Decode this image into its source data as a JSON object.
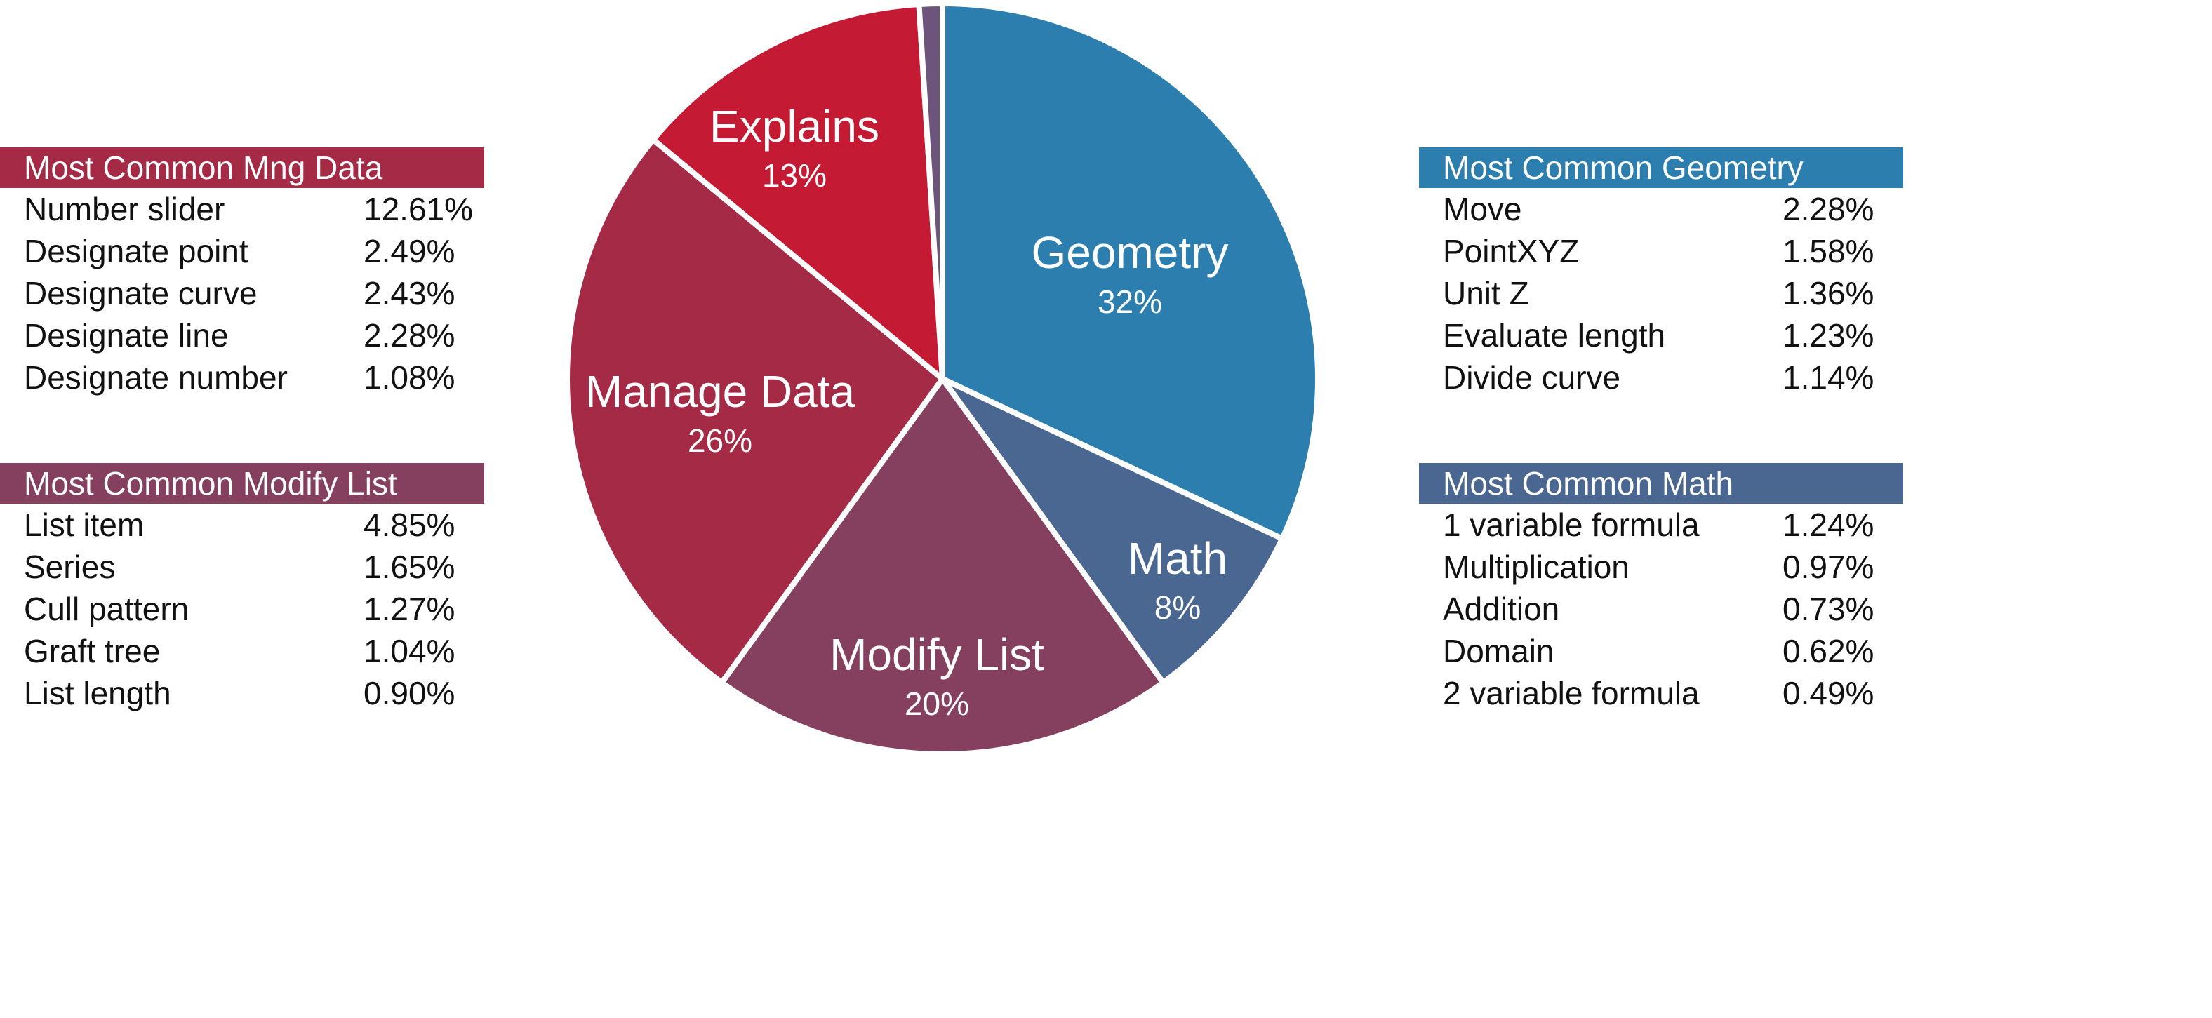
{
  "chart_data": {
    "type": "pie",
    "slices": [
      {
        "name": "Geometry",
        "percent_label": "32%",
        "value": 32,
        "color": "#2b7ead"
      },
      {
        "name": "Math",
        "percent_label": "8%",
        "value": 8,
        "color": "#4a6791"
      },
      {
        "name": "Modify List",
        "percent_label": "20%",
        "value": 20,
        "color": "#86405f"
      },
      {
        "name": "Manage Data",
        "percent_label": "26%",
        "value": 26,
        "color": "#a52a45"
      },
      {
        "name": "Explains",
        "percent_label": "13%",
        "value": 13,
        "color": "#c41a33"
      },
      {
        "name": "",
        "percent_label": "",
        "value": 1,
        "color": "#6d547a"
      }
    ]
  },
  "tables": {
    "mng_data": {
      "title": "Most Common Mng Data",
      "color": "#a52a45",
      "rows": [
        {
          "label": "Number slider",
          "value": "12.61%"
        },
        {
          "label": "Designate point",
          "value": "2.49%"
        },
        {
          "label": "Designate curve",
          "value": "2.43%"
        },
        {
          "label": "Designate line",
          "value": "2.28%"
        },
        {
          "label": "Designate number",
          "value": "1.08%"
        }
      ]
    },
    "modify_list": {
      "title": "Most Common Modify List",
      "color": "#86405f",
      "rows": [
        {
          "label": "List item",
          "value": "4.85%"
        },
        {
          "label": "Series",
          "value": "1.65%"
        },
        {
          "label": "Cull pattern",
          "value": "1.27%"
        },
        {
          "label": "Graft tree",
          "value": "1.04%"
        },
        {
          "label": "List length",
          "value": "0.90%"
        }
      ]
    },
    "geometry": {
      "title": "Most Common Geometry",
      "color": "#2b7ead",
      "rows": [
        {
          "label": "Move",
          "value": "2.28%"
        },
        {
          "label": "PointXYZ",
          "value": "1.58%"
        },
        {
          "label": "Unit Z",
          "value": "1.36%"
        },
        {
          "label": "Evaluate length",
          "value": "1.23%"
        },
        {
          "label": "Divide curve",
          "value": "1.14%"
        }
      ]
    },
    "math": {
      "title": "Most Common Math",
      "color": "#4a6791",
      "rows": [
        {
          "label": "1 variable formula",
          "value": "1.24%"
        },
        {
          "label": "Multiplication",
          "value": "0.97%"
        },
        {
          "label": "Addition",
          "value": "0.73%"
        },
        {
          "label": "Domain",
          "value": "0.62%"
        },
        {
          "label": "2 variable formula",
          "value": "0.49%"
        }
      ]
    }
  }
}
